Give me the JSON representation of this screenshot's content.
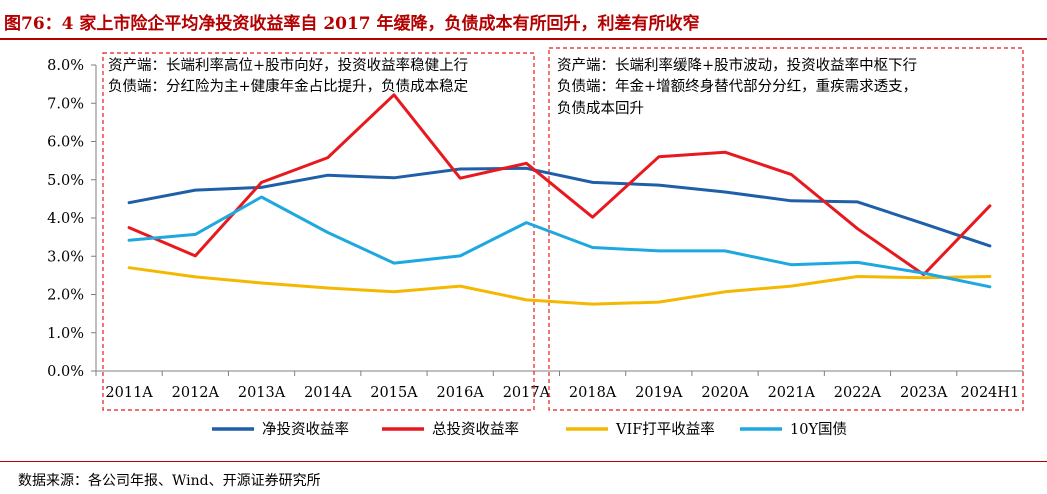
{
  "header": {
    "title": "图76：4 家上市险企平均净投资收益率自 2017 年缓降，负债成本有所回升，利差有所收窄"
  },
  "footer": {
    "source": "数据来源：各公司年报、Wind、开源证券研究所"
  },
  "annotations": {
    "left": [
      "资产端：长端利率高位+股市向好，投资收益率稳健上行",
      "负债端：分红险为主+健康年金占比提升，负债成本稳定"
    ],
    "right": [
      "资产端：长端利率缓降+股市波动，投资收益率中枢下行",
      "负债端：年金+增额终身替代部分分红，重疾需求透支，",
      "负债成本回升"
    ]
  },
  "chart_data": {
    "type": "line",
    "categories": [
      "2011A",
      "2012A",
      "2013A",
      "2014A",
      "2015A",
      "2016A",
      "2017A",
      "2018A",
      "2019A",
      "2020A",
      "2021A",
      "2022A",
      "2023A",
      "2024H1"
    ],
    "ylim": [
      0,
      8
    ],
    "yticks": [
      "0.0%",
      "1.0%",
      "2.0%",
      "3.0%",
      "4.0%",
      "5.0%",
      "6.0%",
      "7.0%",
      "8.0%"
    ],
    "series": [
      {
        "name": "净投资收益率",
        "color": "#1f5fa8",
        "values": [
          4.4,
          4.73,
          4.8,
          5.12,
          5.05,
          5.28,
          5.3,
          4.93,
          4.86,
          4.68,
          4.45,
          4.42,
          3.85,
          3.27
        ]
      },
      {
        "name": "总投资收益率",
        "color": "#e8191e",
        "values": [
          3.75,
          3.01,
          4.93,
          5.58,
          7.22,
          5.04,
          5.43,
          4.02,
          5.6,
          5.72,
          5.14,
          3.72,
          2.52,
          4.32
        ]
      },
      {
        "name": "VIF打平收益率",
        "color": "#f5b800",
        "values": [
          2.7,
          2.46,
          2.3,
          2.17,
          2.07,
          2.22,
          1.86,
          1.75,
          1.8,
          2.07,
          2.22,
          2.47,
          2.44,
          2.47
        ]
      },
      {
        "name": "10Y国债",
        "color": "#1ea8e0",
        "values": [
          3.42,
          3.57,
          4.55,
          3.62,
          2.82,
          3.01,
          3.88,
          3.23,
          3.14,
          3.14,
          2.78,
          2.84,
          2.56,
          2.2
        ]
      }
    ],
    "legend_position": "bottom"
  }
}
